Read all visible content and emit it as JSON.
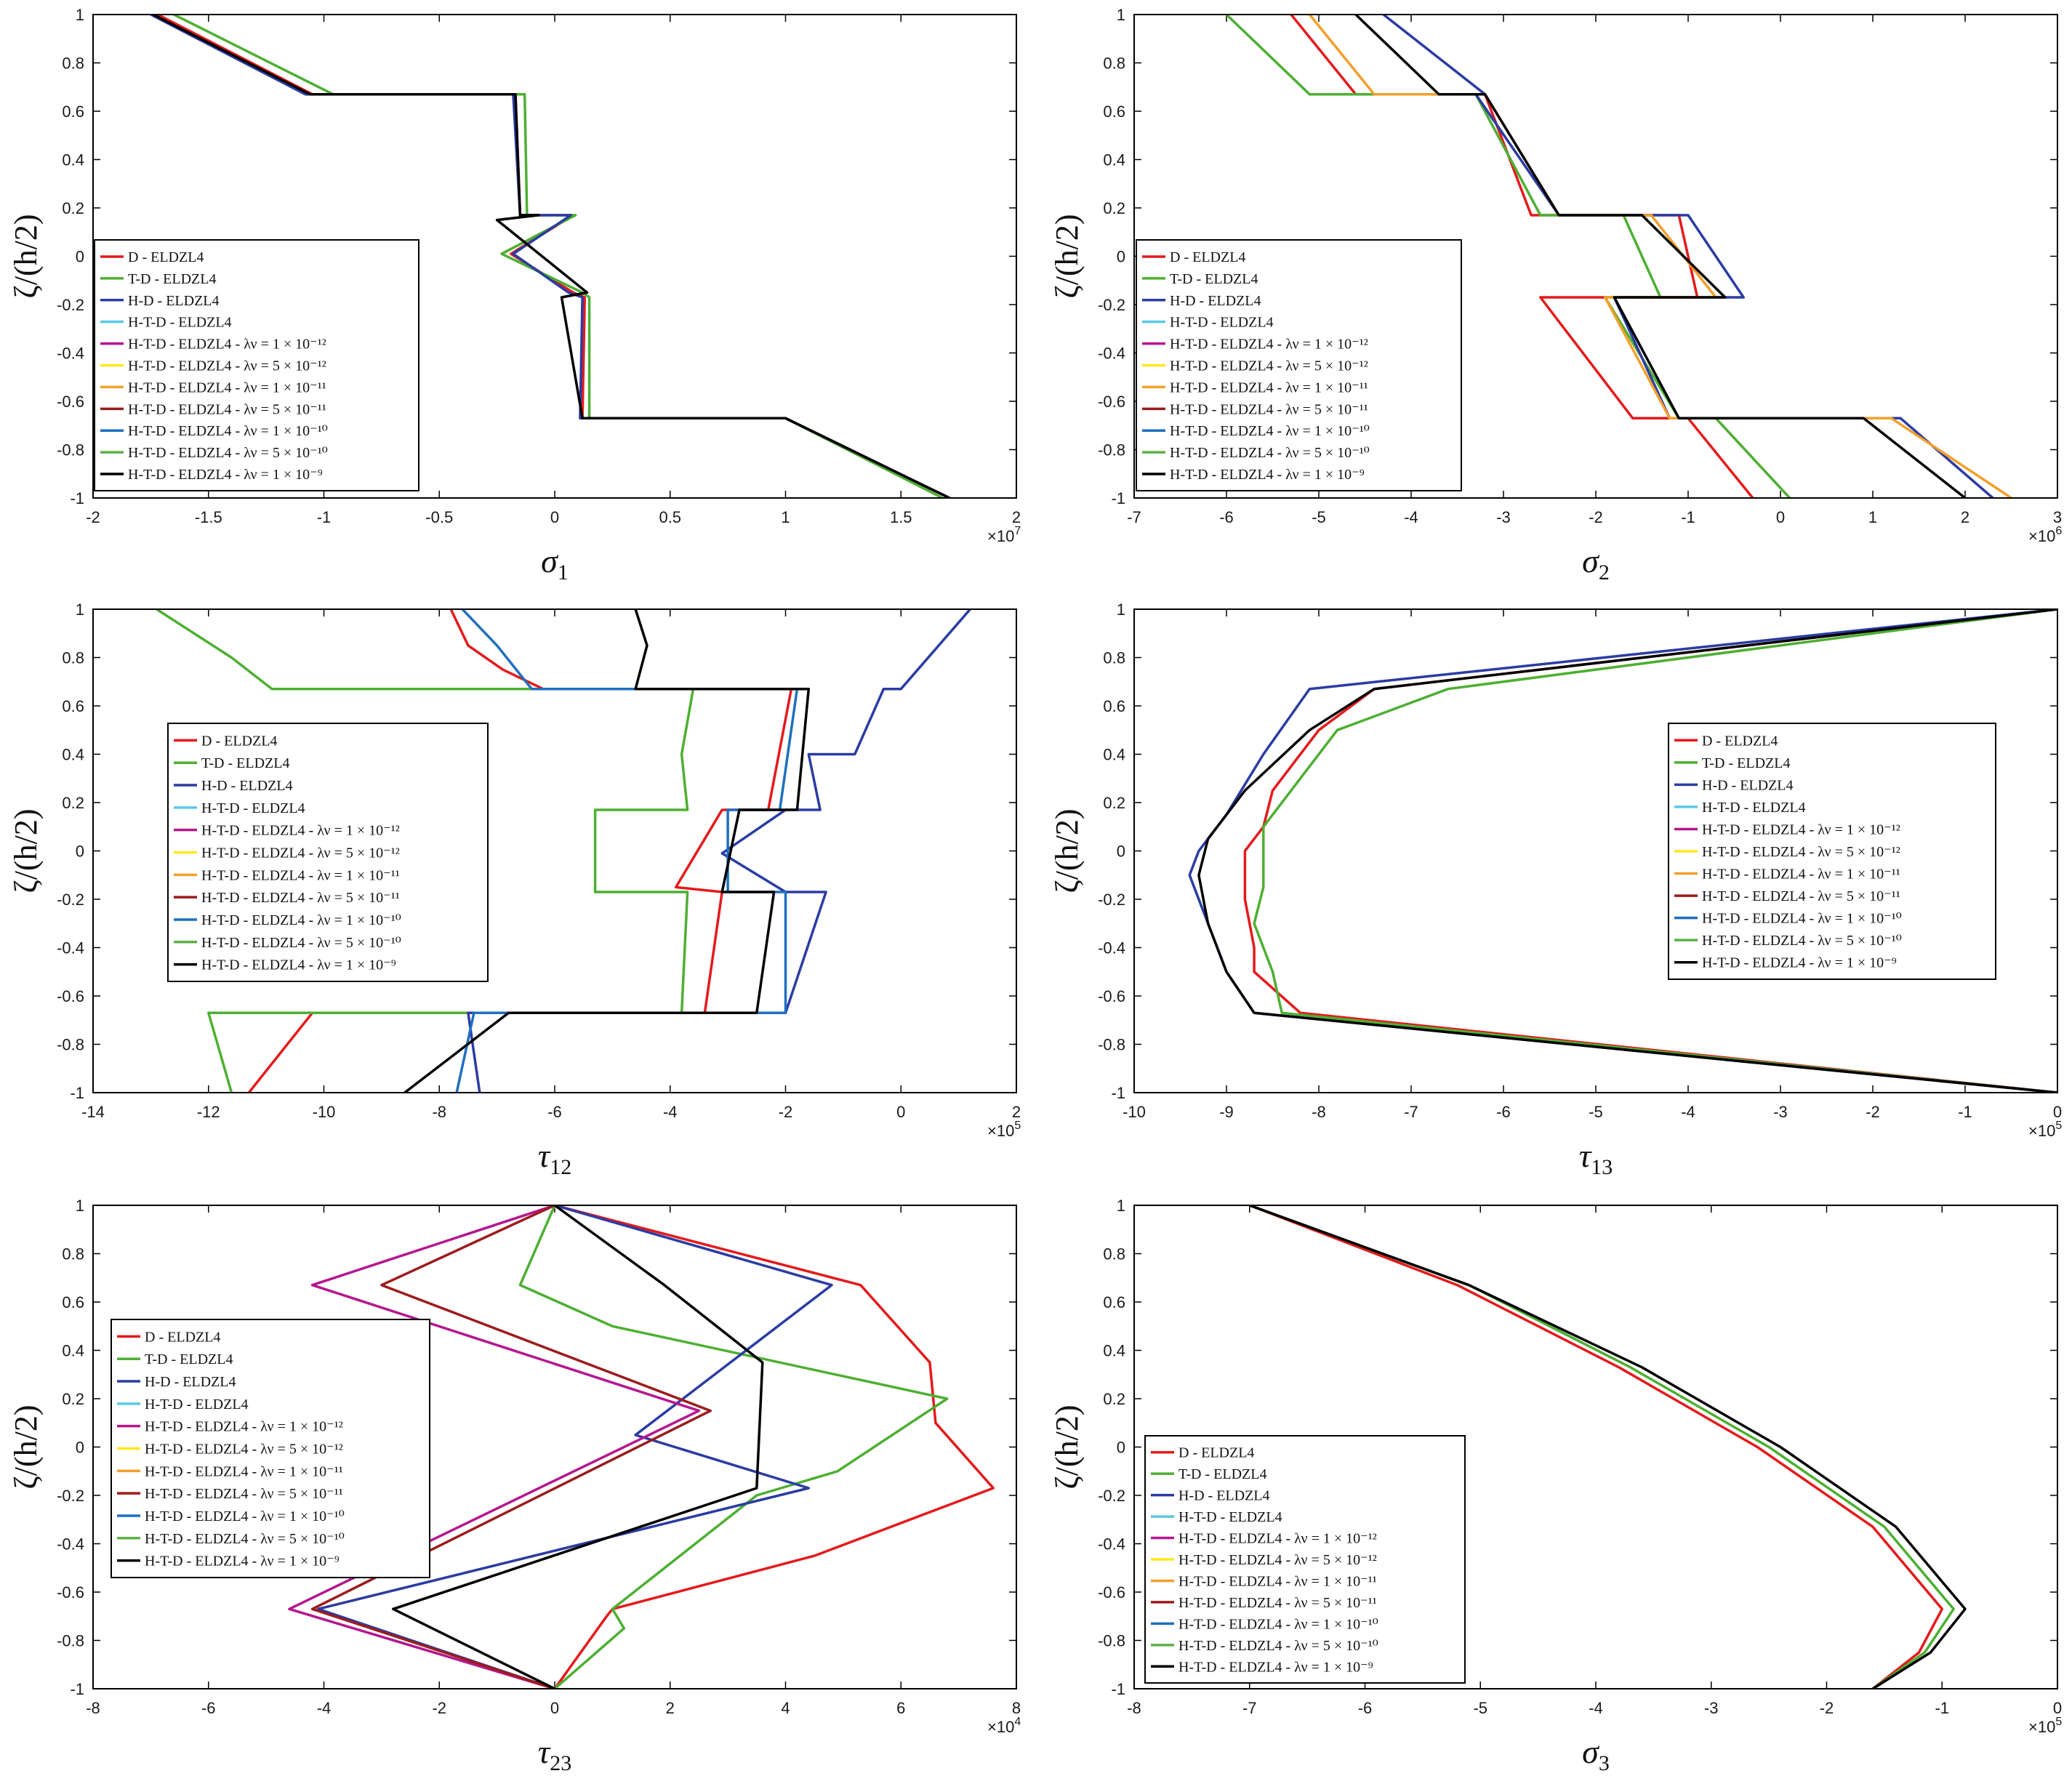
{
  "colors": {
    "red": "#e41a1c",
    "green": "#4daf32",
    "blue": "#2b3ca3",
    "cyan": "#5bc8e6",
    "magenta": "#b5178e",
    "yellow": "#ffe81a",
    "orange": "#f2a02a",
    "darkred": "#9c1c1c",
    "steelblue": "#1f6fbf",
    "green2": "#5cb046",
    "black": "#000000"
  },
  "legend_entries": [
    {
      "label": "D - ELDZL4",
      "color": "#e41a1c"
    },
    {
      "label": "T-D - ELDZL4",
      "color": "#4daf32"
    },
    {
      "label": "H-D - ELDZL4",
      "color": "#2b3ca3"
    },
    {
      "label": "H-T-D - ELDZL4",
      "color": "#5bc8e6"
    },
    {
      "label": "H-T-D - ELDZL4 - λν = 1 × 10⁻¹²",
      "color": "#b5178e"
    },
    {
      "label": "H-T-D - ELDZL4 - λν = 5 × 10⁻¹²",
      "color": "#ffe81a"
    },
    {
      "label": "H-T-D - ELDZL4 - λν = 1 × 10⁻¹¹",
      "color": "#f2a02a"
    },
    {
      "label": "H-T-D - ELDZL4 - λν = 5 × 10⁻¹¹",
      "color": "#9c1c1c"
    },
    {
      "label": "H-T-D - ELDZL4 - λν = 1 × 10⁻¹⁰",
      "color": "#1f6fbf"
    },
    {
      "label": "H-T-D - ELDZL4 - λν = 5 × 10⁻¹⁰",
      "color": "#5cb046"
    },
    {
      "label": "H-T-D - ELDZL4 - λν = 1 × 10⁻⁹",
      "color": "#000000"
    }
  ],
  "chart_data": [
    {
      "id": "sigma1",
      "type": "line",
      "xlabel": "σ",
      "xlabel_sub": "1",
      "ylabel": "ζ/(h/2)",
      "xlim": [
        -2,
        2
      ],
      "ylim": [
        -1,
        1
      ],
      "xticks": [
        "-2",
        "-1.5",
        "-1",
        "-0.5",
        "0",
        "0.5",
        "1",
        "1.5",
        "2"
      ],
      "yticks": [
        "1",
        "0.8",
        "0.6",
        "0.4",
        "0.2",
        "0",
        "-0.2",
        "-0.4",
        "-0.6",
        "-0.8",
        "-1"
      ],
      "x_multiplier": "×10",
      "x_multiplier_exp": "7",
      "legend_position": "left-middle",
      "series": [
        {
          "name": "D - ELDZL4",
          "color": "#e41a1c",
          "x": [
            -1.72,
            -1.05,
            -0.17,
            -0.15,
            0.08,
            -0.19,
            0.08,
            0.13,
            0.12,
            1.0,
            1.71
          ],
          "y": [
            1,
            0.67,
            0.67,
            0.17,
            0.17,
            0.01,
            -0.15,
            -0.17,
            -0.67,
            -0.67,
            -1
          ]
        },
        {
          "name": "T-D - ELDZL4",
          "color": "#4daf32",
          "x": [
            -1.65,
            -0.96,
            -0.13,
            -0.12,
            0.09,
            -0.23,
            0.12,
            0.15,
            0.15,
            1.0,
            1.68
          ],
          "y": [
            1,
            0.67,
            0.67,
            0.17,
            0.17,
            0.01,
            -0.15,
            -0.17,
            -0.67,
            -0.67,
            -1
          ]
        },
        {
          "name": "H-D - ELDZL4",
          "color": "#2b3ca3",
          "x": [
            -1.75,
            -1.08,
            -0.18,
            -0.15,
            0.07,
            -0.18,
            0.06,
            0.12,
            0.11,
            1.0,
            1.71
          ],
          "y": [
            1,
            0.67,
            0.67,
            0.17,
            0.17,
            0.01,
            -0.15,
            -0.17,
            -0.67,
            -0.67,
            -1
          ]
        },
        {
          "name": "H-T-D - ELDZL4 - λν = 1 × 10⁻⁹",
          "color": "#000000",
          "x": [
            -1.74,
            -1.06,
            -0.17,
            -0.15,
            -0.07,
            -0.25,
            0.14,
            0.03,
            0.12,
            1.0,
            1.71
          ],
          "y": [
            1,
            0.67,
            0.67,
            0.17,
            0.17,
            0.15,
            -0.15,
            -0.17,
            -0.67,
            -0.67,
            -1
          ]
        }
      ]
    },
    {
      "id": "sigma2",
      "type": "line",
      "xlabel": "σ",
      "xlabel_sub": "2",
      "ylabel": "ζ/(h/2)",
      "xlim": [
        -7,
        3
      ],
      "ylim": [
        -1,
        1
      ],
      "xticks": [
        "-7",
        "-6",
        "-5",
        "-4",
        "-3",
        "-2",
        "-1",
        "0",
        "1",
        "2",
        "3"
      ],
      "yticks": [
        "1",
        "0.8",
        "0.6",
        "0.4",
        "0.2",
        "0",
        "-0.2",
        "-0.4",
        "-0.6",
        "-0.8",
        "-1"
      ],
      "x_multiplier": "×10",
      "x_multiplier_exp": "6",
      "legend_position": "left-middle",
      "series": [
        {
          "name": "D - ELDZL4",
          "color": "#e41a1c",
          "x": [
            -5.3,
            -4.6,
            -3.2,
            -2.7,
            -1.1,
            -0.9,
            -2.6,
            -1.6,
            -1.0,
            -0.3
          ],
          "y": [
            1,
            0.67,
            0.67,
            0.17,
            0.17,
            -0.17,
            -0.17,
            -0.67,
            -0.67,
            -1
          ]
        },
        {
          "name": "T-D - ELDZL4",
          "color": "#4daf32",
          "x": [
            -6.0,
            -5.1,
            -3.3,
            -2.6,
            -1.7,
            -1.3,
            -1.9,
            -1.1,
            -0.7,
            0.1
          ],
          "y": [
            1,
            0.67,
            0.67,
            0.17,
            0.17,
            -0.17,
            -0.17,
            -0.67,
            -0.67,
            -1
          ]
        },
        {
          "name": "H-D - ELDZL4",
          "color": "#2b3ca3",
          "x": [
            -4.3,
            -3.2,
            -3.3,
            -2.4,
            -1.0,
            -0.4,
            -1.8,
            -1.2,
            1.3,
            2.3
          ],
          "y": [
            1,
            0.67,
            0.67,
            0.17,
            0.17,
            -0.17,
            -0.17,
            -0.67,
            -0.67,
            -1
          ]
        },
        {
          "name": "H-T-D - ELDZL4 - λν = 1 × 10⁻¹¹",
          "color": "#f2a02a",
          "x": [
            -5.1,
            -4.4,
            -3.2,
            -2.4,
            -1.4,
            -0.7,
            -1.9,
            -1.2,
            1.2,
            2.5
          ],
          "y": [
            1,
            0.67,
            0.67,
            0.17,
            0.17,
            -0.17,
            -0.17,
            -0.67,
            -0.67,
            -1
          ]
        },
        {
          "name": "H-T-D - ELDZL4 - λν = 1 × 10⁻⁹",
          "color": "#000000",
          "x": [
            -4.6,
            -3.7,
            -3.2,
            -2.4,
            -1.5,
            -0.6,
            -1.8,
            -1.1,
            0.9,
            2.0
          ],
          "y": [
            1,
            0.67,
            0.67,
            0.17,
            0.17,
            -0.17,
            -0.17,
            -0.67,
            -0.67,
            -1
          ]
        }
      ]
    },
    {
      "id": "tau12",
      "type": "line",
      "xlabel": "τ",
      "xlabel_sub": "12",
      "ylabel": "ζ/(h/2)",
      "xlim": [
        -14,
        2
      ],
      "ylim": [
        -1,
        1
      ],
      "xticks": [
        "-14",
        "-12",
        "-10",
        "-8",
        "-6",
        "-4",
        "-2",
        "0",
        "2"
      ],
      "yticks": [
        "1",
        "0.8",
        "0.6",
        "0.4",
        "0.2",
        "0",
        "-0.2",
        "-0.4",
        "-0.6",
        "-0.8",
        "-1"
      ],
      "x_multiplier": "×10",
      "x_multiplier_exp": "5",
      "legend_position": "left-middle",
      "series": [
        {
          "name": "D - ELDZL4",
          "color": "#e41a1c",
          "x": [
            -7.8,
            -7.5,
            -6.9,
            -6.2,
            -5.2,
            -1.9,
            -2.3,
            -3.1,
            -3.9,
            -3.1,
            -3.4,
            -10.2,
            -11.3
          ],
          "y": [
            1,
            0.85,
            0.75,
            0.67,
            0.67,
            0.67,
            0.17,
            0.17,
            -0.15,
            -0.17,
            -0.67,
            -0.67,
            -1
          ]
        },
        {
          "name": "T-D - ELDZL4",
          "color": "#4daf32",
          "x": [
            -12.9,
            -11.6,
            -10.9,
            -3.6,
            -3.8,
            -3.7,
            -5.3,
            -5.3,
            -3.7,
            -3.8,
            -12.0,
            -11.6
          ],
          "y": [
            1,
            0.8,
            0.67,
            0.67,
            0.4,
            0.17,
            0.17,
            -0.17,
            -0.17,
            -0.67,
            -0.67,
            -1
          ]
        },
        {
          "name": "H-D - ELDZL4",
          "color": "#2b3ca3",
          "x": [
            1.2,
            0.0,
            -0.3,
            -0.8,
            -1.6,
            -1.4,
            -2.0,
            -3.1,
            -2.0,
            -1.3,
            -2.0,
            -7.5,
            -7.3
          ],
          "y": [
            1,
            0.67,
            0.67,
            0.4,
            0.4,
            0.17,
            0.17,
            -0.01,
            -0.17,
            -0.17,
            -0.67,
            -0.67,
            -1
          ]
        },
        {
          "name": "H-T-D - ELDZL4 - λν = 1 × 10⁻¹⁰",
          "color": "#1f6fbf",
          "x": [
            -7.6,
            -7.0,
            -6.4,
            -1.8,
            -2.1,
            -3.0,
            -3.0,
            -2.0,
            -2.0,
            -7.4,
            -7.7
          ],
          "y": [
            1,
            0.85,
            0.67,
            0.67,
            0.17,
            0.17,
            -0.17,
            -0.17,
            -0.67,
            -0.67,
            -1
          ]
        },
        {
          "name": "H-T-D - ELDZL4 - λν = 1 × 10⁻⁹",
          "color": "#000000",
          "x": [
            -4.6,
            -4.4,
            -4.6,
            -1.6,
            -1.8,
            -2.8,
            -3.1,
            -2.2,
            -2.5,
            -6.8,
            -8.6
          ],
          "y": [
            1,
            0.85,
            0.67,
            0.67,
            0.17,
            0.17,
            -0.17,
            -0.17,
            -0.67,
            -0.67,
            -1
          ]
        }
      ]
    },
    {
      "id": "tau13",
      "type": "line",
      "xlabel": "τ",
      "xlabel_sub": "13",
      "ylabel": "ζ/(h/2)",
      "xlim": [
        -10,
        0
      ],
      "ylim": [
        -1,
        1
      ],
      "xticks": [
        "-10",
        "-9",
        "-8",
        "-7",
        "-6",
        "-5",
        "-4",
        "-3",
        "-2",
        "-1",
        "0"
      ],
      "yticks": [
        "1",
        "0.8",
        "0.6",
        "0.4",
        "0.2",
        "0",
        "-0.2",
        "-0.4",
        "-0.6",
        "-0.8",
        "-1"
      ],
      "x_multiplier": "×10",
      "x_multiplier_exp": "5",
      "legend_position": "right-middle",
      "series": [
        {
          "name": "D - ELDZL4",
          "color": "#e41a1c",
          "x": [
            0,
            -7.4,
            -8.0,
            -8.5,
            -8.6,
            -8.8,
            -8.8,
            -8.7,
            -8.7,
            -8.2,
            0
          ],
          "y": [
            1,
            0.67,
            0.5,
            0.25,
            0.1,
            0,
            -0.2,
            -0.4,
            -0.5,
            -0.67,
            -1
          ]
        },
        {
          "name": "T-D - ELDZL4",
          "color": "#4daf32",
          "x": [
            0,
            -6.6,
            -7.8,
            -8.3,
            -8.6,
            -8.6,
            -8.6,
            -8.7,
            -8.5,
            -8.4,
            0
          ],
          "y": [
            1,
            0.67,
            0.5,
            0.25,
            0.1,
            0,
            -0.15,
            -0.3,
            -0.5,
            -0.67,
            -1
          ]
        },
        {
          "name": "H-D - ELDZL4",
          "color": "#2b3ca3",
          "x": [
            0,
            -8.1,
            -8.6,
            -9.0,
            -9.3,
            -9.4,
            -9.2,
            -9.0,
            -8.7,
            0
          ],
          "y": [
            1,
            0.67,
            0.4,
            0.15,
            0,
            -0.1,
            -0.3,
            -0.5,
            -0.67,
            -1
          ]
        },
        {
          "name": "H-T-D - ELDZL4 - λν = 1 × 10⁻⁹",
          "color": "#000000",
          "x": [
            0,
            -7.4,
            -8.1,
            -8.8,
            -9.2,
            -9.3,
            -9.2,
            -9.0,
            -8.7,
            0
          ],
          "y": [
            1,
            0.67,
            0.5,
            0.25,
            0.05,
            -0.1,
            -0.3,
            -0.5,
            -0.67,
            -1
          ]
        }
      ]
    },
    {
      "id": "tau23",
      "type": "line",
      "xlabel": "τ",
      "xlabel_sub": "23",
      "ylabel": "ζ/(h/2)",
      "xlim": [
        -8,
        8
      ],
      "ylim": [
        -1,
        1
      ],
      "xticks": [
        "-8",
        "-6",
        "-4",
        "-2",
        "0",
        "2",
        "4",
        "6",
        "8"
      ],
      "yticks": [
        "1",
        "0.8",
        "0.6",
        "0.4",
        "0.2",
        "0",
        "-0.2",
        "-0.4",
        "-0.6",
        "-0.8",
        "-1"
      ],
      "x_multiplier": "×10",
      "x_multiplier_exp": "4",
      "legend_position": "left-middle",
      "series": [
        {
          "name": "D - ELDZL4",
          "color": "#e41a1c",
          "x": [
            0,
            5.3,
            6.5,
            6.6,
            7.6,
            4.5,
            1.0,
            0.9,
            0
          ],
          "y": [
            1,
            0.67,
            0.35,
            0.1,
            -0.17,
            -0.45,
            -0.67,
            -0.7,
            -1
          ]
        },
        {
          "name": "T-D - ELDZL4",
          "color": "#4daf32",
          "x": [
            0,
            -0.6,
            1.0,
            6.8,
            4.9,
            3.5,
            1.0,
            1.2,
            0
          ],
          "y": [
            1,
            0.67,
            0.5,
            0.2,
            -0.1,
            -0.2,
            -0.67,
            -0.75,
            -1
          ]
        },
        {
          "name": "H-D - ELDZL4",
          "color": "#2b3ca3",
          "x": [
            0,
            4.8,
            1.4,
            4.4,
            -4.1,
            0
          ],
          "y": [
            1,
            0.67,
            0.05,
            -0.17,
            -0.67,
            -1
          ]
        },
        {
          "name": "H-T-D - ELDZL4 - λν = 1 × 10⁻¹²",
          "color": "#b5178e",
          "x": [
            0,
            -4.2,
            2.5,
            -4.6,
            0
          ],
          "y": [
            1,
            0.67,
            0.15,
            -0.67,
            -1
          ]
        },
        {
          "name": "H-T-D - ELDZL4 - λν = 5 × 10⁻¹¹",
          "color": "#9c1c1c",
          "x": [
            0,
            -3.0,
            2.7,
            -4.2,
            0
          ],
          "y": [
            1,
            0.67,
            0.15,
            -0.67,
            -1
          ]
        },
        {
          "name": "H-T-D - ELDZL4 - λν = 1 × 10⁻⁹",
          "color": "#000000",
          "x": [
            0,
            1.9,
            3.6,
            3.5,
            -2.8,
            0
          ],
          "y": [
            1,
            0.67,
            0.35,
            -0.17,
            -0.67,
            -1
          ]
        }
      ]
    },
    {
      "id": "sigma3",
      "type": "line",
      "xlabel": "σ",
      "xlabel_sub": "3",
      "ylabel": "ζ/(h/2)",
      "xlim": [
        -8,
        0
      ],
      "ylim": [
        -1,
        1
      ],
      "xticks": [
        "-8",
        "-7",
        "-6",
        "-5",
        "-4",
        "-3",
        "-2",
        "-1",
        "0"
      ],
      "yticks": [
        "1",
        "0.8",
        "0.6",
        "0.4",
        "0.2",
        "0",
        "-0.2",
        "-0.4",
        "-0.6",
        "-0.8",
        "-1"
      ],
      "x_multiplier": "×10",
      "x_multiplier_exp": "5",
      "legend_position": "left-bottom",
      "series": [
        {
          "name": "D - ELDZL4",
          "color": "#e41a1c",
          "x": [
            -7.0,
            -5.2,
            -3.8,
            -2.6,
            -1.6,
            -1.0,
            -1.2,
            -1.6
          ],
          "y": [
            1,
            0.67,
            0.33,
            0.0,
            -0.33,
            -0.67,
            -0.85,
            -1
          ]
        },
        {
          "name": "T-D - ELDZL4",
          "color": "#4daf32",
          "x": [
            -7.0,
            -5.1,
            -3.7,
            -2.5,
            -1.5,
            -0.9,
            -1.15,
            -1.6
          ],
          "y": [
            1,
            0.67,
            0.33,
            0.0,
            -0.33,
            -0.67,
            -0.85,
            -1
          ]
        },
        {
          "name": "H-T-D - ELDZL4 - λν = 1 × 10⁻⁹",
          "color": "#000000",
          "x": [
            -7.0,
            -5.1,
            -3.6,
            -2.4,
            -1.4,
            -0.8,
            -1.1,
            -1.6
          ],
          "y": [
            1,
            0.67,
            0.33,
            0.0,
            -0.33,
            -0.67,
            -0.85,
            -1
          ]
        }
      ]
    }
  ]
}
